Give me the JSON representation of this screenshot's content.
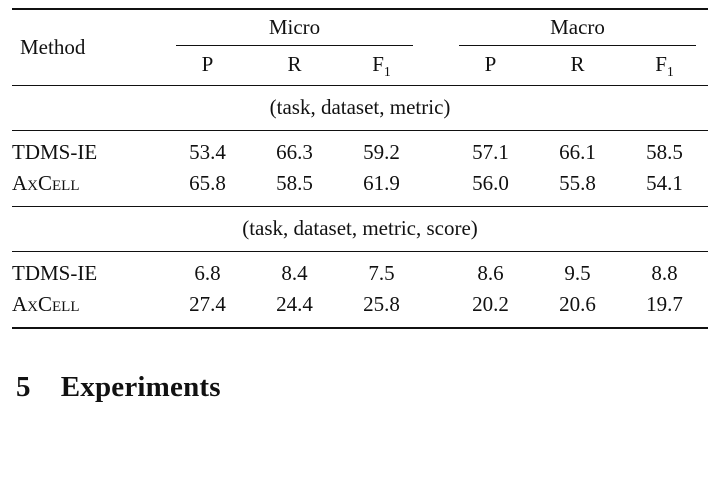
{
  "table": {
    "method_header": "Method",
    "groups": [
      {
        "label": "Micro"
      },
      {
        "label": "Macro"
      }
    ],
    "sub_headers": {
      "p": "P",
      "r": "R",
      "f": "F",
      "f_sub": "1"
    },
    "sections": [
      {
        "caption": "(task, dataset, metric)",
        "rows": [
          {
            "method": "TDMS-IE",
            "values": [
              "53.4",
              "66.3",
              "59.2",
              "57.1",
              "66.1",
              "58.5"
            ]
          },
          {
            "method": "AxCell",
            "values": [
              "65.8",
              "58.5",
              "61.9",
              "56.0",
              "55.8",
              "54.1"
            ]
          }
        ]
      },
      {
        "caption": "(task, dataset, metric, score)",
        "rows": [
          {
            "method": "TDMS-IE",
            "values": [
              "6.8",
              "8.4",
              "7.5",
              "8.6",
              "9.5",
              "8.8"
            ]
          },
          {
            "method": "AxCell",
            "values": [
              "27.4",
              "24.4",
              "25.8",
              "20.2",
              "20.6",
              "19.7"
            ]
          }
        ]
      }
    ]
  },
  "section_heading": {
    "number": "5",
    "title": "Experiments"
  }
}
